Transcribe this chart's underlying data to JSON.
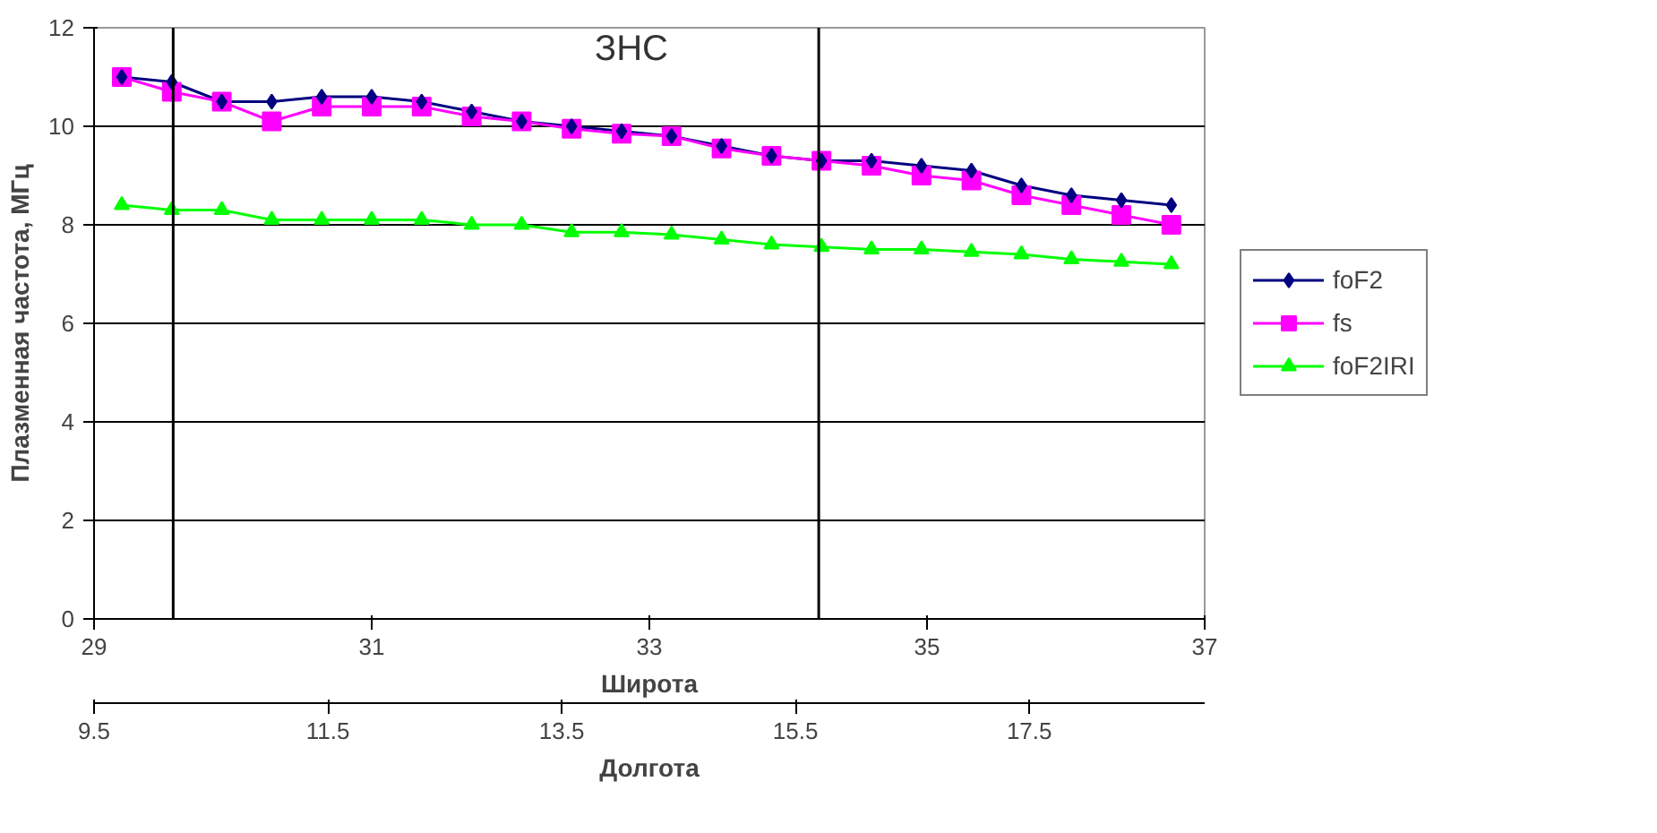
{
  "chart_data": {
    "type": "line",
    "ylabel": "Плазменная частота, МГц",
    "xlabel": "Широта",
    "x2label": "Долгота",
    "x": [
      29.2,
      29.56,
      29.92,
      30.28,
      30.64,
      31.0,
      31.36,
      31.72,
      32.08,
      32.44,
      32.8,
      33.16,
      33.52,
      33.88,
      34.24,
      34.6,
      34.96,
      35.32,
      35.68,
      36.04,
      36.4,
      36.76
    ],
    "series": [
      {
        "name": "foF2",
        "color": "#000080",
        "marker": "diamond",
        "values": [
          11.0,
          10.9,
          10.5,
          10.5,
          10.6,
          10.6,
          10.5,
          10.3,
          10.1,
          10.0,
          9.9,
          9.8,
          9.6,
          9.4,
          9.3,
          9.3,
          9.2,
          9.1,
          8.8,
          8.6,
          8.5,
          8.4
        ]
      },
      {
        "name": "fs",
        "color": "#ff00ff",
        "marker": "square",
        "values": [
          11.0,
          10.7,
          10.5,
          10.1,
          10.4,
          10.4,
          10.4,
          10.2,
          10.1,
          9.95,
          9.85,
          9.8,
          9.55,
          9.4,
          9.3,
          9.2,
          9.0,
          8.9,
          8.6,
          8.4,
          8.2,
          8.0
        ]
      },
      {
        "name": "foF2IRI",
        "color": "#00ff00",
        "marker": "triangle",
        "values": [
          8.4,
          8.3,
          8.3,
          8.1,
          8.1,
          8.1,
          8.1,
          8.0,
          8.0,
          7.85,
          7.85,
          7.8,
          7.7,
          7.6,
          7.55,
          7.5,
          7.5,
          7.45,
          7.4,
          7.3,
          7.25,
          7.2
        ]
      }
    ],
    "xlim": [
      29,
      37
    ],
    "xticks": [
      29,
      31,
      33,
      35,
      37
    ],
    "x2lim": [
      9.5,
      19
    ],
    "x2ticks": [
      9.5,
      11.5,
      13.5,
      15.5,
      17.5
    ],
    "ylim": [
      0,
      12
    ],
    "yticks": [
      0,
      2,
      4,
      6,
      8,
      10,
      12
    ],
    "ref_lines": [
      {
        "axis": "x",
        "value": 29.57,
        "color": "#000000"
      },
      {
        "axis": "x",
        "value": 34.22,
        "color": "#000000"
      }
    ],
    "annotations": [
      "ЗНС"
    ],
    "grid": "y",
    "legend": "right",
    "line_style": "solid"
  }
}
